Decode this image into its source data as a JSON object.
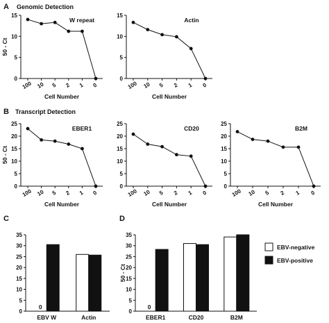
{
  "panels": {
    "A": {
      "letter": "A",
      "title": "Genomic Detection"
    },
    "B": {
      "letter": "B",
      "title": "Transcript Detection"
    },
    "C": {
      "letter": "C"
    },
    "D": {
      "letter": "D"
    }
  },
  "legend": {
    "items": [
      {
        "label": "EBV-negative",
        "fill": "#ffffff"
      },
      {
        "label": "EBV-positive",
        "fill": "#111111"
      }
    ]
  },
  "chart_data": [
    {
      "type": "line",
      "panel": "A",
      "label": "W repeat",
      "categories": [
        "100",
        "10",
        "5",
        "2",
        "1",
        "0"
      ],
      "values": [
        14,
        13,
        13.3,
        11.2,
        11.2,
        0
      ],
      "ylabel": "50 - Ct",
      "xlabel": "Cell Number",
      "ylim": [
        0,
        15
      ],
      "yticks": [
        0,
        5,
        10,
        15
      ]
    },
    {
      "type": "line",
      "panel": "A",
      "label": "Actin",
      "categories": [
        "100",
        "10",
        "5",
        "2",
        "1",
        "0"
      ],
      "values": [
        13.3,
        11.6,
        10.4,
        9.9,
        7.1,
        0
      ],
      "ylabel": "",
      "xlabel": "Cell Number",
      "ylim": [
        0,
        15
      ],
      "yticks": [
        0,
        5,
        10,
        15
      ]
    },
    {
      "type": "line",
      "panel": "B",
      "label": "EBER1",
      "categories": [
        "100",
        "10",
        "5",
        "2",
        "1",
        "0"
      ],
      "values": [
        23,
        18.5,
        18,
        16.8,
        15,
        0
      ],
      "ylabel": "50 - Ct",
      "xlabel": "Cell Number",
      "ylim": [
        0,
        25
      ],
      "yticks": [
        0,
        5,
        10,
        15,
        20,
        25
      ]
    },
    {
      "type": "line",
      "panel": "B",
      "label": "CD20",
      "categories": [
        "100",
        "10",
        "5",
        "2",
        "1",
        "0"
      ],
      "values": [
        20.8,
        16.8,
        15.8,
        12.6,
        12,
        0
      ],
      "ylabel": "",
      "xlabel": "Cell Number",
      "ylim": [
        0,
        25
      ],
      "yticks": [
        0,
        5,
        10,
        15,
        20,
        25
      ]
    },
    {
      "type": "line",
      "panel": "B",
      "label": "B2M",
      "categories": [
        "100",
        "10",
        "5",
        "2",
        "1",
        "0"
      ],
      "values": [
        21.8,
        18.7,
        18,
        15.6,
        15.6,
        0
      ],
      "ylabel": "",
      "xlabel": "Cell Number",
      "ylim": [
        0,
        25
      ],
      "yticks": [
        0,
        5,
        10,
        15,
        20,
        25
      ]
    },
    {
      "type": "bar",
      "panel": "C",
      "categories": [
        "EBV W",
        "Actin"
      ],
      "series": [
        {
          "name": "EBV-negative",
          "values": [
            0,
            26
          ]
        },
        {
          "name": "EBV-positive",
          "values": [
            30.5,
            25.7
          ]
        }
      ],
      "zero_labels": [
        "0",
        ""
      ],
      "ylabel": "",
      "ylim": [
        0,
        35
      ],
      "yticks": [
        0,
        5,
        10,
        15,
        20,
        25,
        30,
        35
      ]
    },
    {
      "type": "bar",
      "panel": "D",
      "categories": [
        "EBER1",
        "CD20",
        "B2M"
      ],
      "series": [
        {
          "name": "EBV-negative",
          "values": [
            0,
            31,
            34
          ]
        },
        {
          "name": "EBV-positive",
          "values": [
            28.3,
            30.5,
            35
          ]
        }
      ],
      "zero_labels": [
        "0",
        "",
        ""
      ],
      "ylabel": "50 - Ct",
      "ylim": [
        0,
        35
      ],
      "yticks": [
        0,
        5,
        10,
        15,
        20,
        25,
        30,
        35
      ]
    }
  ]
}
